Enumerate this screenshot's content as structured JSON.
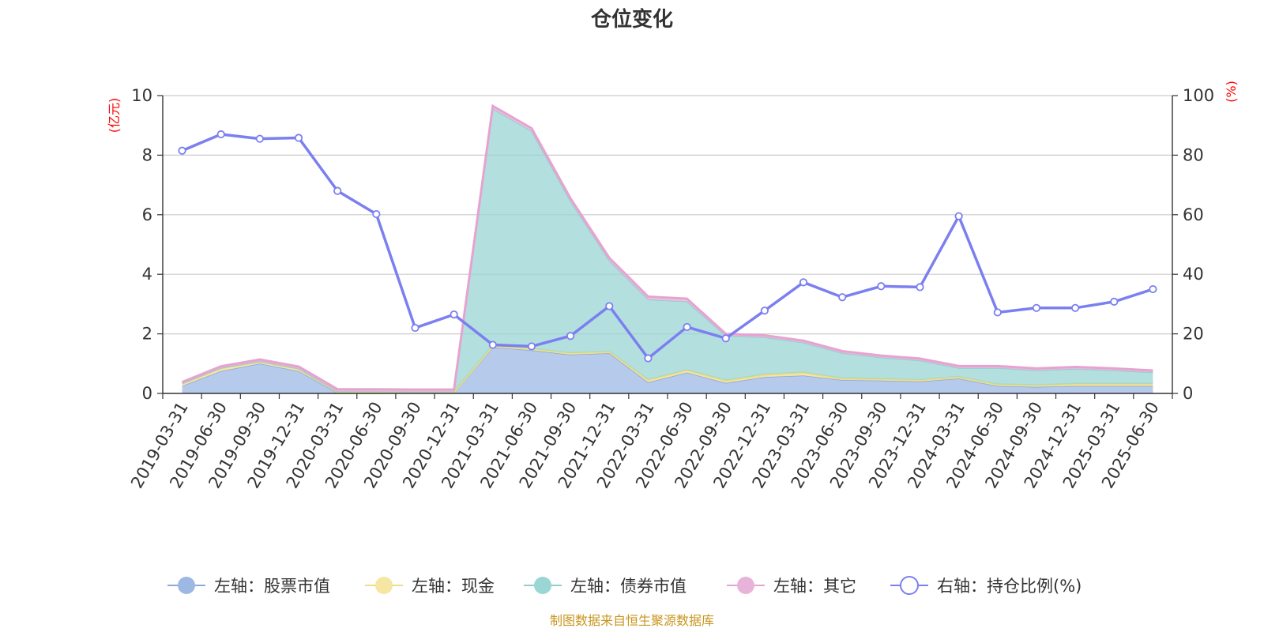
{
  "source_note": "制图数据来自恒生聚源数据库",
  "colors": {
    "stock": "#9db8e4",
    "cash": "#f5e6a3",
    "bond": "#9ad6d4",
    "other": "#e8b3d9",
    "ratio": "#7b7ff0",
    "grid": "#cccccc",
    "axis": "#333333",
    "unit": "#ff0000",
    "source": "#c8961e"
  },
  "chart_data": {
    "type": "area",
    "title": "仓位变化",
    "y_left_unit": "(亿元)",
    "y_right_unit": "(%)",
    "y_left_range": [
      0,
      10
    ],
    "y_right_range": [
      0,
      100
    ],
    "y_left_ticks": [
      "0",
      "2",
      "4",
      "6",
      "8",
      "10"
    ],
    "y_right_ticks": [
      "0",
      "20",
      "40",
      "60",
      "80",
      "100"
    ],
    "grid": true,
    "legend_position": "bottom",
    "categories": [
      "2019-03-31",
      "2019-06-30",
      "2019-09-30",
      "2019-12-31",
      "2020-03-31",
      "2020-06-30",
      "2020-09-30",
      "2020-12-31",
      "2021-03-31",
      "2021-06-30",
      "2021-09-30",
      "2021-12-31",
      "2022-03-31",
      "2022-06-30",
      "2022-09-30",
      "2022-12-31",
      "2023-03-31",
      "2023-06-30",
      "2023-09-30",
      "2023-12-31",
      "2024-03-31",
      "2024-06-30",
      "2024-09-30",
      "2024-12-31",
      "2025-03-31",
      "2025-06-30"
    ],
    "series": [
      {
        "name": "左轴：股票市值",
        "axis": "left",
        "kind": "stacked-area",
        "values": [
          0.25,
          0.75,
          1.0,
          0.75,
          0.02,
          0.02,
          0.01,
          0.01,
          1.55,
          1.45,
          1.3,
          1.35,
          0.37,
          0.7,
          0.35,
          0.55,
          0.6,
          0.45,
          0.43,
          0.4,
          0.5,
          0.25,
          0.22,
          0.25,
          0.25,
          0.25
        ]
      },
      {
        "name": "左轴：现金",
        "axis": "left",
        "kind": "stacked-area",
        "values": [
          0.08,
          0.1,
          0.07,
          0.08,
          0.04,
          0.04,
          0.04,
          0.04,
          0.05,
          0.05,
          0.05,
          0.05,
          0.08,
          0.08,
          0.08,
          0.08,
          0.1,
          0.05,
          0.05,
          0.05,
          0.05,
          0.05,
          0.05,
          0.07,
          0.07,
          0.07
        ]
      },
      {
        "name": "左轴：债券市值",
        "axis": "left",
        "kind": "stacked-area",
        "values": [
          0,
          0,
          0,
          0,
          0,
          0,
          0,
          0,
          7.95,
          7.3,
          5.1,
          3.05,
          2.7,
          2.3,
          1.5,
          1.25,
          1.0,
          0.85,
          0.72,
          0.65,
          0.3,
          0.55,
          0.5,
          0.5,
          0.45,
          0.38
        ]
      },
      {
        "name": "左轴：其它",
        "axis": "left",
        "kind": "stacked-area",
        "values": [
          0.05,
          0.06,
          0.07,
          0.07,
          0.08,
          0.08,
          0.08,
          0.08,
          0.1,
          0.1,
          0.1,
          0.1,
          0.1,
          0.1,
          0.07,
          0.07,
          0.07,
          0.07,
          0.07,
          0.07,
          0.07,
          0.07,
          0.07,
          0.07,
          0.07,
          0.07
        ]
      },
      {
        "name": "右轴：持仓比例(%)",
        "axis": "right",
        "kind": "line",
        "values": [
          81.5,
          87.0,
          85.5,
          85.8,
          68.0,
          60.2,
          22.0,
          26.5,
          16.3,
          15.8,
          19.3,
          29.3,
          11.8,
          22.3,
          18.5,
          27.8,
          37.3,
          32.3,
          36.0,
          35.7,
          59.5,
          27.2,
          28.7,
          28.7,
          30.8,
          35.0
        ]
      }
    ]
  }
}
